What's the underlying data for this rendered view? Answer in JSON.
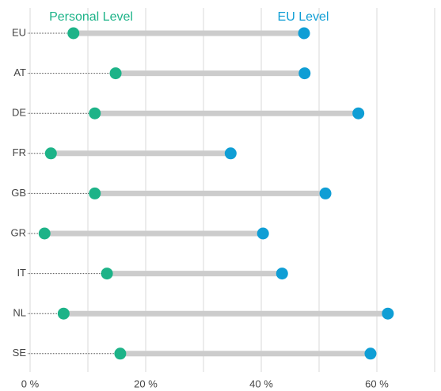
{
  "chart_data": {
    "type": "dumbbell",
    "categories": [
      "EU",
      "AT",
      "DE",
      "FR",
      "GB",
      "GR",
      "IT",
      "NL",
      "SE"
    ],
    "series": [
      {
        "name": "Personal Level",
        "color": "#1db388",
        "values": [
          7.5,
          14.8,
          11.2,
          3.6,
          11.2,
          2.5,
          13.3,
          5.8,
          15.6
        ]
      },
      {
        "name": "EU Level",
        "color": "#0f9ed5",
        "values": [
          47.4,
          47.5,
          56.8,
          34.7,
          51.1,
          40.3,
          43.6,
          61.9,
          58.9
        ]
      }
    ],
    "xlim": [
      0,
      70
    ],
    "xticks": [
      {
        "value": 0,
        "label": "0 %"
      },
      {
        "value": 20,
        "label": "20 %"
      },
      {
        "value": 40,
        "label": "40 %"
      },
      {
        "value": 60,
        "label": "60 %"
      }
    ],
    "xminor": [
      10,
      30,
      50,
      70
    ],
    "grid": true,
    "bar_color": "#cccccc"
  }
}
